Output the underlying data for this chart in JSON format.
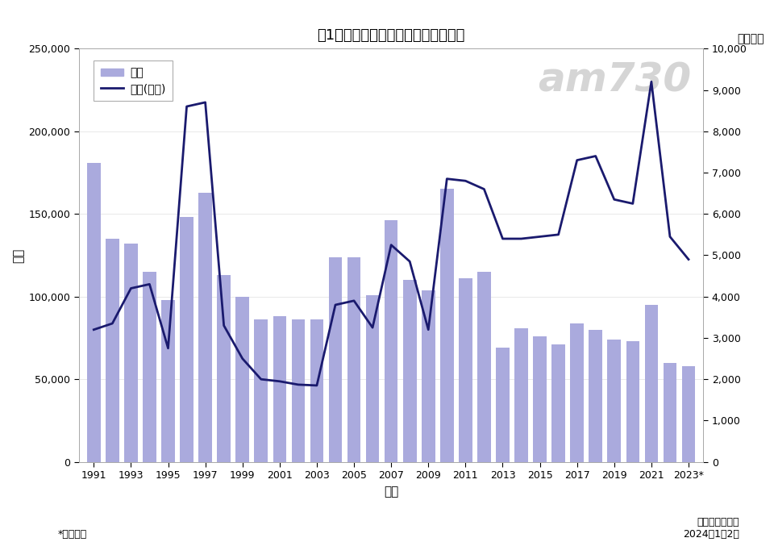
{
  "title": "圖1：整體樓宇買賣合約登記按年統計",
  "xlabel": "年份",
  "ylabel_left": "宗數",
  "ylabel_right": "（億元）",
  "footer_left": "*臨時數字",
  "footer_right_line1": "中原地產研究部",
  "footer_right_line2": "2024年1月2日",
  "years": [
    1991,
    1992,
    1993,
    1994,
    1995,
    1996,
    1997,
    1998,
    1999,
    2000,
    2001,
    2002,
    2003,
    2004,
    2005,
    2006,
    2007,
    2008,
    2009,
    2010,
    2011,
    2012,
    2013,
    2014,
    2015,
    2016,
    2017,
    2018,
    2019,
    2020,
    2021,
    2022,
    2023
  ],
  "bar_values": [
    181000,
    135000,
    132000,
    115000,
    98000,
    148000,
    163000,
    113000,
    100000,
    86000,
    88000,
    86000,
    86000,
    124000,
    124000,
    101000,
    146000,
    110000,
    104000,
    165000,
    111000,
    115000,
    69000,
    81000,
    76000,
    71000,
    84000,
    80000,
    74000,
    73000,
    95000,
    60000,
    58000
  ],
  "line_values": [
    3200,
    3350,
    4200,
    4300,
    2750,
    8600,
    8700,
    3300,
    2500,
    2000,
    1950,
    1870,
    1850,
    3800,
    3900,
    3250,
    5250,
    4850,
    3200,
    6850,
    6800,
    6600,
    5400,
    5400,
    5450,
    5500,
    7300,
    7400,
    6350,
    6250,
    9200,
    5450,
    4900
  ],
  "bar_color": "#aaaadd",
  "line_color": "#1a1a6e",
  "background_color": "#ffffff",
  "ylim_left": [
    0,
    250000
  ],
  "ylim_right": [
    0,
    10000
  ],
  "yticks_left": [
    0,
    50000,
    100000,
    150000,
    200000,
    250000
  ],
  "yticks_right": [
    0,
    1000,
    2000,
    3000,
    4000,
    5000,
    6000,
    7000,
    8000,
    9000,
    10000
  ],
  "legend_bar_label": "宗數",
  "legend_line_label": "金額(億元)",
  "watermark_text": "am730",
  "watermark_color": "#c8c8c8"
}
